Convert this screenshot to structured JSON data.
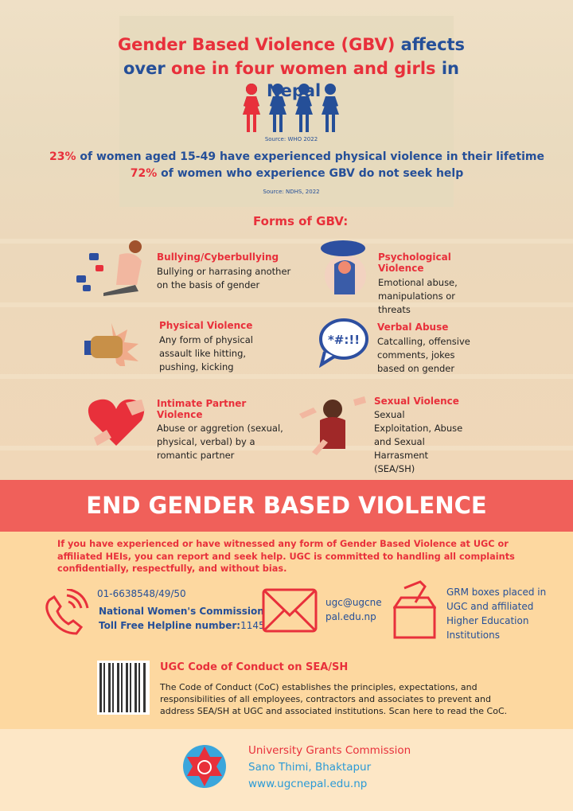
{
  "header": {
    "line1_red": "Gender Based Violence (GBV)",
    "line1_blue": " affects",
    "line2_blue_a": "over ",
    "line2_red": "one in four women and girls",
    "line2_blue_b": " in",
    "line3": "Nepal",
    "source1": "Source: WHO 2022"
  },
  "stats": [
    {
      "pct": "23%",
      "text": " of women aged 15-49 have experienced physical violence in their lifetime"
    },
    {
      "pct": "72%",
      "text": " of women who experience GBV do not seek help"
    }
  ],
  "source2": "Source: NDHS, 2022",
  "forms": {
    "title": "Forms of GBV:",
    "items": [
      {
        "title": "Bullying/Cyberbullying",
        "desc": "Bullying or harrasing another on the basis of gender"
      },
      {
        "title": "Psychological Violence",
        "desc": "Emotional abuse, manipulations or threats"
      },
      {
        "title": "Physical Violence",
        "desc": "Any form of physical assault like hitting, pushing, kicking"
      },
      {
        "title": "Verbal Abuse",
        "desc": "Catcalling, offensive comments, jokes based on gender",
        "bubble": "*#:!!"
      },
      {
        "title": "Intimate Partner Violence",
        "desc": "Abuse or aggretion (sexual, physical, verbal) by a romantic partner"
      },
      {
        "title": "Sexual Violence",
        "desc": "Sexual Exploitation, Abuse and Sexual Harrasment (SEA/SH)"
      }
    ]
  },
  "banner": "END GENDER BASED VIOLENCE",
  "report_text": "If you have experienced or have witnessed any form of Gender Based Violence at UGC or affiliated HEIs, you can report and seek help. UGC is committed to handling all complaints confidentially, respectfully, and without bias.",
  "contacts": {
    "phone": "01-6638548/49/50",
    "nwc": "National Women's Commission",
    "tollfree_label": "Toll Free Helpline number:",
    "tollfree": "1145",
    "email_a": "ugc@ugcne",
    "email_b": "pal.edu.np",
    "grm": "GRM boxes placed in UGC and affiliated Higher Education Institutions"
  },
  "coc": {
    "title": "UGC Code of Conduct on SEA/SH",
    "text": "The Code of Conduct (CoC) establishes the principles, expectations, and responsibilities of all employees, contractors and associates to prevent and address SEA/SH at UGC and associated institutions. Scan here to read the CoC."
  },
  "footer": {
    "org": "University Grants Commission",
    "address": "Sano Thimi, Bhaktapur",
    "website": "www.ugcnepal.edu.np"
  },
  "colors": {
    "red": "#e8303b",
    "blue": "#254f98",
    "banner": "#f0605a",
    "orange": "#fdd8a0"
  }
}
